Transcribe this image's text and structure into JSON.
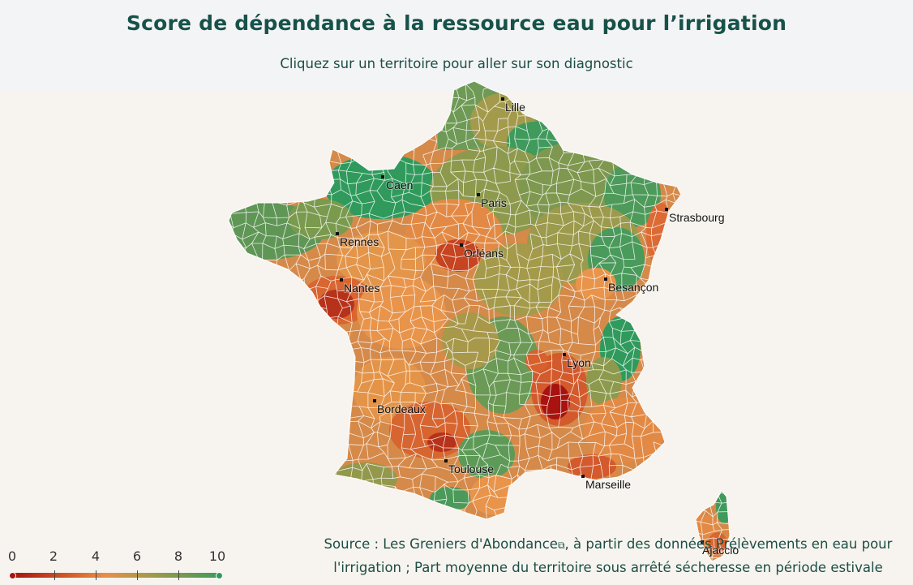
{
  "header": {
    "title": "Score de dépendance à la ressource eau pour l’irrigation",
    "subtitle": "Cliquez sur un territoire pour aller sur son diagnostic"
  },
  "map": {
    "cities": [
      {
        "name": "Lille"
      },
      {
        "name": "Caen"
      },
      {
        "name": "Paris"
      },
      {
        "name": "Strasbourg"
      },
      {
        "name": "Rennes"
      },
      {
        "name": "Orléans"
      },
      {
        "name": "Nantes"
      },
      {
        "name": "Besançon"
      },
      {
        "name": "Lyon"
      },
      {
        "name": "Bordeaux"
      },
      {
        "name": "Toulouse"
      },
      {
        "name": "Marseille"
      },
      {
        "name": "Ajaccio"
      }
    ],
    "colors": {
      "low": "#a8130f",
      "mid": "#e88f47",
      "olive": "#a79a4b",
      "high": "#3f9a5c",
      "border": "#ffffff"
    }
  },
  "legend": {
    "ticks": [
      "0",
      "2",
      "4",
      "6",
      "8",
      "10"
    ],
    "min_color": "#a8130f",
    "max_color": "#2f9a5c"
  },
  "source": {
    "prefix": "Source : ",
    "link_text": "Les Greniers d'Abondance",
    "link_icon": "external-link-icon",
    "rest_line1": ", à partir des données Prélèvements en eau pour",
    "line2": "l'irrigation ; Part moyenne du territoire sous arrêté sécheresse en période estivale"
  }
}
